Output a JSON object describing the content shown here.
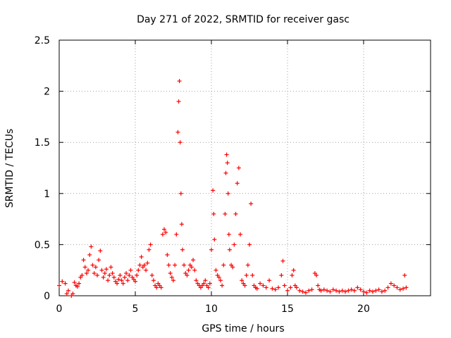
{
  "chart_data": {
    "type": "scatter",
    "title": "Day 271 of 2022, SRMTID for receiver gasc",
    "xlabel": "GPS time / hours",
    "ylabel": "SRMTID / TECUs",
    "xlim": [
      0,
      24.4
    ],
    "ylim": [
      0,
      2.5
    ],
    "xticks": [
      0,
      5,
      10,
      15,
      20
    ],
    "xtick_labels": [
      "0",
      "5",
      "10",
      "15",
      "20"
    ],
    "yticks": [
      0,
      0.5,
      1,
      1.5,
      2,
      2.5
    ],
    "ytick_labels": [
      "0",
      "0.5",
      "1",
      "1.5",
      "2",
      "2.5"
    ],
    "grid": true,
    "marker": "+",
    "color": "#ff0000",
    "series": [
      {
        "name": "gasc",
        "x": [
          0.0,
          0.2,
          0.4,
          0.5,
          0.6,
          0.8,
          0.9,
          1.0,
          1.1,
          1.2,
          1.3,
          1.4,
          1.5,
          1.6,
          1.7,
          1.8,
          1.9,
          2.0,
          2.1,
          2.2,
          2.3,
          2.4,
          2.5,
          2.6,
          2.7,
          2.8,
          2.9,
          3.0,
          3.1,
          3.2,
          3.3,
          3.4,
          3.5,
          3.6,
          3.7,
          3.8,
          3.9,
          4.0,
          4.1,
          4.2,
          4.3,
          4.4,
          4.5,
          4.6,
          4.7,
          4.8,
          4.9,
          5.0,
          5.1,
          5.2,
          5.3,
          5.4,
          5.5,
          5.6,
          5.7,
          5.8,
          5.9,
          6.0,
          6.1,
          6.2,
          6.3,
          6.4,
          6.5,
          6.6,
          6.7,
          6.8,
          6.9,
          7.0,
          7.1,
          7.2,
          7.3,
          7.4,
          7.5,
          7.6,
          7.7,
          7.8,
          7.85,
          7.9,
          7.95,
          8.0,
          8.05,
          8.1,
          8.2,
          8.3,
          8.4,
          8.5,
          8.6,
          8.7,
          8.8,
          8.9,
          9.0,
          9.1,
          9.2,
          9.3,
          9.4,
          9.5,
          9.6,
          9.7,
          9.8,
          9.9,
          10.0,
          10.1,
          10.15,
          10.2,
          10.3,
          10.4,
          10.5,
          10.6,
          10.7,
          10.8,
          10.9,
          10.95,
          11.0,
          11.05,
          11.1,
          11.15,
          11.2,
          11.3,
          11.4,
          11.5,
          11.6,
          11.7,
          11.8,
          11.9,
          12.0,
          12.1,
          12.2,
          12.3,
          12.4,
          12.5,
          12.6,
          12.7,
          12.8,
          12.9,
          13.0,
          13.2,
          13.4,
          13.6,
          13.8,
          14.0,
          14.2,
          14.4,
          14.6,
          14.7,
          14.8,
          15.0,
          15.2,
          15.3,
          15.4,
          15.5,
          15.6,
          15.8,
          16.0,
          16.2,
          16.4,
          16.6,
          16.8,
          16.9,
          17.0,
          17.1,
          17.2,
          17.4,
          17.6,
          17.8,
          18.0,
          18.2,
          18.4,
          18.6,
          18.8,
          19.0,
          19.2,
          19.4,
          19.6,
          19.8,
          20.0,
          20.2,
          20.4,
          20.6,
          20.8,
          21.0,
          21.2,
          21.4,
          21.6,
          21.8,
          22.0,
          22.2,
          22.4,
          22.6,
          22.7,
          22.8
        ],
        "y": [
          0.1,
          0.14,
          0.12,
          0.02,
          0.05,
          0.0,
          0.02,
          0.13,
          0.1,
          0.09,
          0.12,
          0.18,
          0.2,
          0.35,
          0.28,
          0.22,
          0.25,
          0.4,
          0.48,
          0.3,
          0.22,
          0.28,
          0.2,
          0.35,
          0.44,
          0.25,
          0.18,
          0.22,
          0.26,
          0.15,
          0.2,
          0.28,
          0.22,
          0.18,
          0.14,
          0.12,
          0.16,
          0.2,
          0.15,
          0.12,
          0.18,
          0.22,
          0.15,
          0.2,
          0.25,
          0.18,
          0.16,
          0.14,
          0.2,
          0.25,
          0.3,
          0.38,
          0.28,
          0.3,
          0.25,
          0.32,
          0.45,
          0.5,
          0.2,
          0.15,
          0.1,
          0.08,
          0.12,
          0.1,
          0.08,
          0.6,
          0.65,
          0.62,
          0.4,
          0.3,
          0.22,
          0.18,
          0.15,
          0.3,
          0.6,
          1.6,
          1.9,
          2.1,
          1.5,
          1.0,
          0.7,
          0.45,
          0.3,
          0.22,
          0.2,
          0.25,
          0.3,
          0.28,
          0.35,
          0.25,
          0.15,
          0.12,
          0.1,
          0.08,
          0.1,
          0.12,
          0.15,
          0.1,
          0.08,
          0.12,
          0.45,
          1.03,
          0.8,
          0.55,
          0.25,
          0.2,
          0.18,
          0.15,
          0.1,
          0.3,
          0.8,
          1.2,
          1.38,
          1.3,
          1.0,
          0.6,
          0.45,
          0.3,
          0.28,
          0.5,
          0.8,
          1.1,
          1.25,
          0.6,
          0.15,
          0.12,
          0.1,
          0.2,
          0.3,
          0.5,
          0.9,
          0.2,
          0.1,
          0.08,
          0.07,
          0.12,
          0.1,
          0.08,
          0.15,
          0.07,
          0.06,
          0.08,
          0.2,
          0.34,
          0.1,
          0.05,
          0.08,
          0.2,
          0.25,
          0.1,
          0.08,
          0.05,
          0.04,
          0.03,
          0.05,
          0.06,
          0.22,
          0.2,
          0.1,
          0.06,
          0.05,
          0.06,
          0.05,
          0.04,
          0.06,
          0.05,
          0.04,
          0.05,
          0.04,
          0.05,
          0.06,
          0.05,
          0.08,
          0.06,
          0.04,
          0.03,
          0.05,
          0.04,
          0.05,
          0.06,
          0.04,
          0.05,
          0.08,
          0.12,
          0.1,
          0.08,
          0.06,
          0.07,
          0.2,
          0.08
        ]
      }
    ]
  }
}
